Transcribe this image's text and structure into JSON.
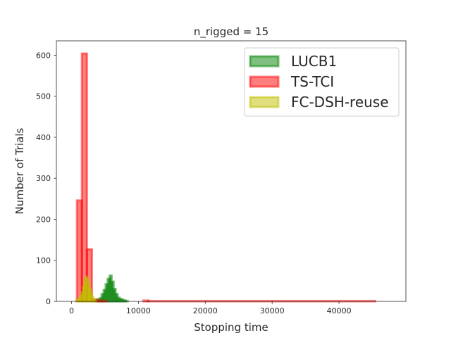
{
  "chart_data": {
    "type": "histogram",
    "title": "n_rigged = 15",
    "xlabel": "Stopping time",
    "ylabel": "Number of Trials",
    "xlim": [
      -2265,
      50000
    ],
    "ylim": [
      0,
      635
    ],
    "xticks": [
      0,
      10000,
      20000,
      30000,
      40000
    ],
    "xtick_labels": [
      "0",
      "10000",
      "20000",
      "30000",
      "40000"
    ],
    "yticks": [
      0,
      100,
      200,
      300,
      400,
      500,
      600
    ],
    "ytick_labels": [
      "0",
      "100",
      "200",
      "300",
      "400",
      "500",
      "600"
    ],
    "grid": false,
    "legend_position": "top-right",
    "series": [
      {
        "name": "LUCB1",
        "color": "#008000",
        "fill_opacity": 0.5,
        "bins": [
          [
            3300,
            3600,
            2
          ],
          [
            3600,
            3900,
            3
          ],
          [
            3900,
            4200,
            5
          ],
          [
            4200,
            4500,
            8
          ],
          [
            4500,
            4800,
            18
          ],
          [
            4800,
            5100,
            28
          ],
          [
            5100,
            5400,
            42
          ],
          [
            5400,
            5700,
            55
          ],
          [
            5700,
            6000,
            63
          ],
          [
            6000,
            6300,
            48
          ],
          [
            6300,
            6600,
            30
          ],
          [
            6600,
            6900,
            18
          ],
          [
            6900,
            7200,
            9
          ],
          [
            7200,
            7500,
            6
          ],
          [
            7500,
            7800,
            4
          ],
          [
            7800,
            8100,
            2
          ],
          [
            8100,
            8400,
            1
          ]
        ]
      },
      {
        "name": "TS-TCI",
        "color": "#ff0000",
        "fill_opacity": 0.5,
        "bins": [
          [
            800,
            1550,
            246
          ],
          [
            1550,
            2300,
            604
          ],
          [
            2300,
            3050,
            127
          ],
          [
            3050,
            3800,
            5
          ],
          [
            3800,
            4550,
            2
          ],
          [
            4550,
            5300,
            1
          ],
          [
            10750,
            11500,
            2
          ],
          [
            11500,
            45400,
            1
          ]
        ]
      },
      {
        "name": "FC-DSH-reuse",
        "color": "#bfbf00",
        "fill_opacity": 0.5,
        "bins": [
          [
            700,
            900,
            2
          ],
          [
            900,
            1100,
            5
          ],
          [
            1100,
            1300,
            8
          ],
          [
            1300,
            1500,
            14
          ],
          [
            1500,
            1700,
            22
          ],
          [
            1700,
            1900,
            35
          ],
          [
            1900,
            2100,
            52
          ],
          [
            2100,
            2300,
            60
          ],
          [
            2300,
            2500,
            56
          ],
          [
            2500,
            2700,
            44
          ],
          [
            2700,
            2900,
            30
          ],
          [
            2900,
            3100,
            18
          ],
          [
            3100,
            3300,
            10
          ],
          [
            3300,
            3500,
            5
          ],
          [
            3500,
            3700,
            2
          ]
        ]
      }
    ]
  }
}
